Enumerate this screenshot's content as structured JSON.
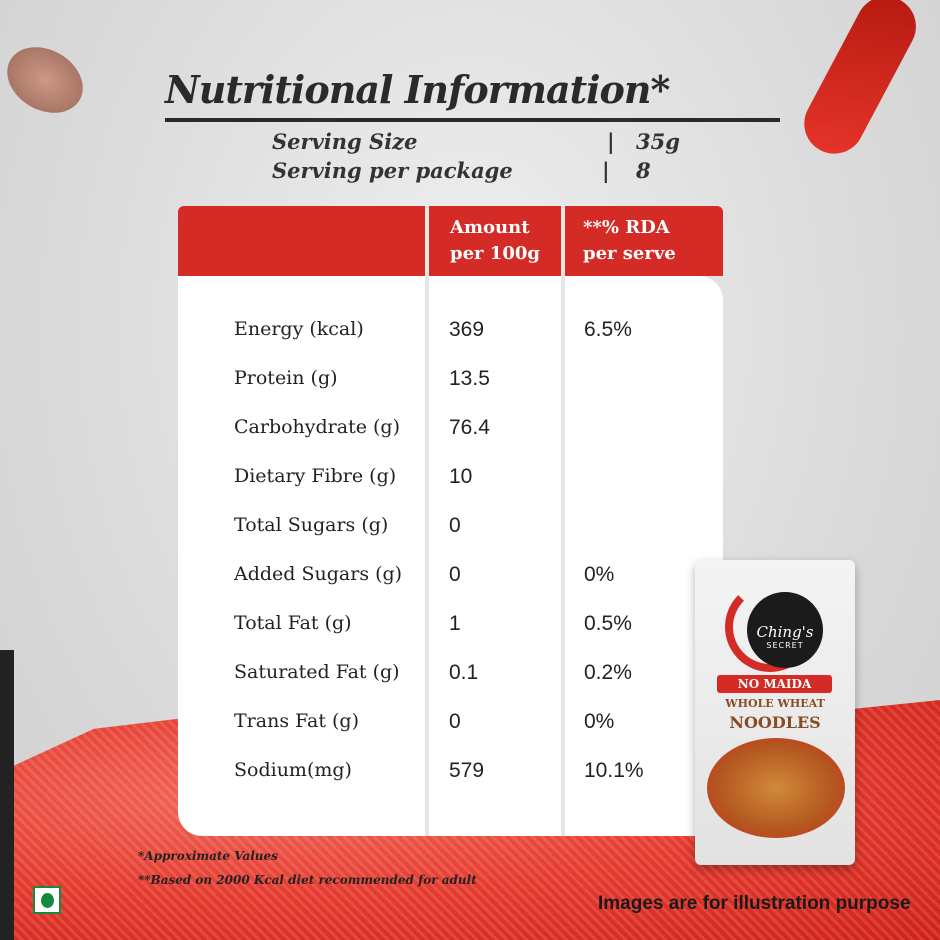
{
  "title": "Nutritional Information*",
  "serving": {
    "size_label": "Serving Size",
    "size_value": "35g",
    "per_package_label": "Serving per package",
    "per_package_value": "8",
    "separator": "|"
  },
  "table": {
    "headers": [
      "",
      "Amount\nper 100g",
      "**% RDA\nper serve"
    ],
    "header_amount_1": "Amount",
    "header_amount_2": "per 100g",
    "header_rda_1": "**% RDA",
    "header_rda_2": "per serve",
    "rows": [
      {
        "nutrient": "Energy (kcal)",
        "amount": "369",
        "rda": "6.5%"
      },
      {
        "nutrient": "Protein (g)",
        "amount": "13.5",
        "rda": ""
      },
      {
        "nutrient": "Carbohydrate (g)",
        "amount": "76.4",
        "rda": ""
      },
      {
        "nutrient": "Dietary Fibre (g)",
        "amount": "10",
        "rda": ""
      },
      {
        "nutrient": "Total Sugars (g)",
        "amount": "0",
        "rda": ""
      },
      {
        "nutrient": "Added Sugars (g)",
        "amount": "0",
        "rda": "0%"
      },
      {
        "nutrient": "Total Fat (g)",
        "amount": "1",
        "rda": "0.5%"
      },
      {
        "nutrient": "Saturated Fat (g)",
        "amount": "0.1",
        "rda": "0.2%"
      },
      {
        "nutrient": "Trans Fat (g)",
        "amount": "0",
        "rda": "0%"
      },
      {
        "nutrient": "Sodium(mg)",
        "amount": "579",
        "rda": "10.1%"
      }
    ]
  },
  "package": {
    "brand": "Ching's",
    "brand_sub": "SECRET",
    "badge": "NO MAIDA",
    "line1": "WHOLE WHEAT",
    "line2": "NOODLES"
  },
  "footnotes": [
    "*Approximate Values",
    "**Based on 2000 Kcal diet recommended for adult"
  ],
  "disclaimer": "Images are for illustration purpose",
  "colors": {
    "accent": "#d42b27",
    "veg": "#138a3e"
  }
}
